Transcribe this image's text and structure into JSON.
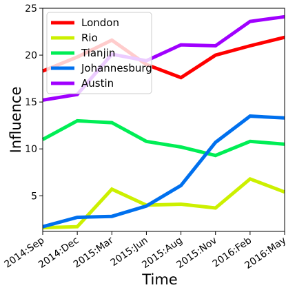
{
  "chart_data": {
    "type": "line",
    "title": "",
    "xlabel": "Time",
    "ylabel": "Influence",
    "categories": [
      "2014:Sep",
      "2014:Dec",
      "2015:Mar",
      "2015:Jun",
      "2015:Aug",
      "2015:Nov",
      "2016:Feb",
      "2016:May"
    ],
    "ylim": [
      1.2,
      25
    ],
    "yticks": [
      5,
      10,
      15,
      20,
      25
    ],
    "grid": false,
    "legend_position": "top-left",
    "series": [
      {
        "name": "London",
        "color": "#ff0000",
        "values": [
          18.3,
          19.8,
          21.6,
          19.0,
          17.6,
          20.0,
          21.0,
          21.9
        ]
      },
      {
        "name": "Rio",
        "color": "#ccf000",
        "values": [
          1.6,
          1.7,
          5.7,
          4.0,
          4.1,
          3.7,
          6.8,
          5.4
        ]
      },
      {
        "name": "Tianjin",
        "color": "#00ee55",
        "values": [
          11.0,
          13.0,
          12.8,
          10.8,
          10.2,
          9.3,
          10.8,
          10.5
        ]
      },
      {
        "name": "Johannesburg",
        "color": "#0070ee",
        "values": [
          1.7,
          2.7,
          2.8,
          3.9,
          6.1,
          10.7,
          13.5,
          13.3
        ]
      },
      {
        "name": "Austin",
        "color": "#a000ff",
        "values": [
          15.2,
          15.8,
          20.1,
          19.4,
          21.1,
          21.0,
          23.6,
          24.1
        ]
      }
    ]
  }
}
